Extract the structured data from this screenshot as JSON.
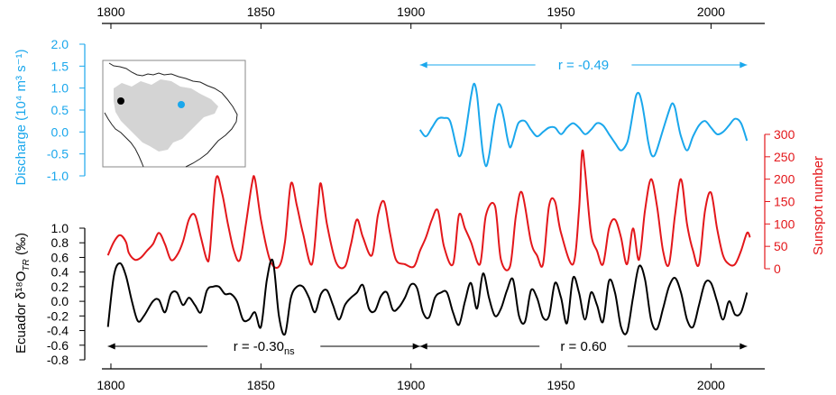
{
  "colors": {
    "discharge": "#1aa7ec",
    "sunspot": "#e3171b",
    "ecuador": "#000000",
    "map_land": "#d4d4d4",
    "map_site_ecuador": "#000000",
    "map_site_discharge": "#1aa7ec"
  },
  "labels": {
    "discharge_axis": "Discharge (10⁴ m³ s⁻¹)",
    "sunspot_axis": "Sunspot number",
    "ecuador_axis_main": "Ecuador δ¹⁸O",
    "ecuador_axis_sub": "TR",
    "ecuador_axis_unit": " (‰)",
    "r_discharge": "r = -0.49",
    "r_ecuador_early_main": "r = -0.30",
    "r_ecuador_early_sub": "ns",
    "r_ecuador_late": "r = 0.60"
  },
  "chart_data": {
    "type": "line",
    "xlim": [
      1797,
      2014
    ],
    "x_ticks": [
      "1800",
      "1850",
      "1900",
      "1950",
      "2000"
    ],
    "panels": [
      {
        "name": "Discharge",
        "axis_side": "left",
        "ylim": [
          -1.0,
          2.0
        ],
        "y_ticks": [
          "2.0",
          "1.5",
          "1.0",
          "0.5",
          "0.0",
          "-0.5",
          "-1.0"
        ],
        "x": [
          1903,
          1905,
          1907,
          1909,
          1911,
          1913,
          1915,
          1916,
          1917,
          1918,
          1919,
          1920,
          1921,
          1922,
          1923,
          1924,
          1925,
          1926,
          1927,
          1928,
          1929,
          1930,
          1931,
          1932,
          1933,
          1934,
          1935,
          1936,
          1938,
          1940,
          1942,
          1944,
          1946,
          1948,
          1950,
          1952,
          1954,
          1956,
          1958,
          1960,
          1962,
          1964,
          1966,
          1968,
          1970,
          1972,
          1973,
          1974,
          1975,
          1976,
          1977,
          1978,
          1979,
          1980,
          1981,
          1982,
          1984,
          1986,
          1987,
          1988,
          1989,
          1990,
          1992,
          1994,
          1996,
          1998,
          2000,
          2002,
          2004,
          2006,
          2008,
          2010,
          2012
        ],
        "y": [
          0.05,
          -0.1,
          0.1,
          0.3,
          0.32,
          0.25,
          -0.3,
          -0.55,
          -0.45,
          -0.1,
          0.35,
          0.8,
          1.1,
          0.85,
          0.15,
          -0.5,
          -0.78,
          -0.55,
          -0.1,
          0.35,
          0.62,
          0.58,
          0.3,
          -0.1,
          -0.35,
          -0.2,
          0.05,
          0.22,
          0.25,
          0.05,
          -0.1,
          0.0,
          0.1,
          0.1,
          -0.05,
          0.1,
          0.2,
          0.1,
          -0.05,
          0.05,
          0.2,
          0.15,
          -0.05,
          -0.25,
          -0.42,
          -0.25,
          0.05,
          0.45,
          0.82,
          0.88,
          0.65,
          0.25,
          -0.2,
          -0.5,
          -0.55,
          -0.4,
          0.05,
          0.48,
          0.65,
          0.55,
          0.2,
          -0.1,
          -0.42,
          -0.1,
          0.15,
          0.25,
          0.1,
          -0.05,
          0.0,
          0.15,
          0.3,
          0.2,
          -0.2
        ],
        "r_text": "r = -0.49",
        "r_span": [
          1903,
          2012
        ]
      },
      {
        "name": "Sunspot number",
        "axis_side": "right",
        "ylim": [
          0,
          300
        ],
        "y_ticks": [
          "300",
          "250",
          "200",
          "150",
          "100",
          "50",
          "0"
        ],
        "x": [
          1799,
          1801,
          1803,
          1805,
          1806,
          1808,
          1810,
          1812,
          1814,
          1816,
          1818,
          1820,
          1822,
          1824,
          1826,
          1828,
          1830,
          1832,
          1833,
          1835,
          1837,
          1839,
          1841,
          1843,
          1845,
          1847,
          1848,
          1850,
          1853,
          1856,
          1858,
          1860,
          1862,
          1864,
          1867,
          1869,
          1870,
          1872,
          1875,
          1878,
          1880,
          1882,
          1884,
          1887,
          1889,
          1891,
          1893,
          1895,
          1898,
          1901,
          1903,
          1905,
          1907,
          1909,
          1911,
          1914,
          1916,
          1918,
          1920,
          1923,
          1925,
          1928,
          1930,
          1933,
          1935,
          1937,
          1940,
          1942,
          1944,
          1946,
          1948,
          1950,
          1954,
          1956,
          1957,
          1958,
          1960,
          1962,
          1964,
          1966,
          1968,
          1970,
          1972,
          1974,
          1976,
          1978,
          1980,
          1982,
          1984,
          1986,
          1988,
          1990,
          1992,
          1994,
          1996,
          1998,
          2000,
          2002,
          2004,
          2006,
          2008,
          2010,
          2012,
          2013
        ],
        "y": [
          30,
          60,
          75,
          60,
          35,
          20,
          25,
          40,
          55,
          80,
          55,
          20,
          30,
          60,
          110,
          120,
          70,
          20,
          40,
          200,
          170,
          100,
          40,
          20,
          100,
          190,
          200,
          110,
          20,
          5,
          60,
          190,
          140,
          80,
          10,
          140,
          190,
          100,
          15,
          5,
          55,
          110,
          70,
          30,
          120,
          150,
          80,
          20,
          10,
          5,
          40,
          70,
          110,
          130,
          50,
          10,
          120,
          90,
          60,
          10,
          120,
          140,
          20,
          5,
          120,
          170,
          60,
          30,
          10,
          140,
          150,
          80,
          10,
          130,
          260,
          220,
          80,
          40,
          10,
          90,
          110,
          70,
          10,
          90,
          20,
          130,
          200,
          140,
          40,
          10,
          120,
          200,
          100,
          40,
          10,
          130,
          170,
          90,
          30,
          10,
          10,
          40,
          80,
          70
        ]
      },
      {
        "name": "Ecuador d18O TR",
        "axis_side": "left",
        "ylim": [
          -0.8,
          1.0
        ],
        "y_ticks": [
          "1.0",
          "0.8",
          "0.6",
          "0.4",
          "0.2",
          "0.0",
          "-0.2",
          "-0.4",
          "-0.6",
          "-0.8"
        ],
        "x": [
          1799,
          1801,
          1803,
          1805,
          1807,
          1809,
          1811,
          1814,
          1816,
          1818,
          1820,
          1822,
          1824,
          1826,
          1828,
          1830,
          1832,
          1834,
          1836,
          1838,
          1840,
          1842,
          1844,
          1846,
          1848,
          1850,
          1852,
          1854,
          1856,
          1858,
          1860,
          1862,
          1864,
          1866,
          1868,
          1870,
          1872,
          1874,
          1876,
          1878,
          1880,
          1882,
          1884,
          1886,
          1888,
          1890,
          1892,
          1894,
          1896,
          1898,
          1900,
          1902,
          1904,
          1906,
          1908,
          1910,
          1912,
          1914,
          1916,
          1918,
          1920,
          1922,
          1924,
          1926,
          1928,
          1930,
          1932,
          1934,
          1936,
          1938,
          1940,
          1942,
          1944,
          1946,
          1948,
          1950,
          1952,
          1954,
          1956,
          1958,
          1960,
          1962,
          1964,
          1966,
          1968,
          1970,
          1972,
          1974,
          1976,
          1978,
          1980,
          1982,
          1984,
          1986,
          1988,
          1990,
          1992,
          1994,
          1996,
          1998,
          2000,
          2002,
          2004,
          2006,
          2008,
          2010,
          2012
        ],
        "y": [
          -0.35,
          0.35,
          0.52,
          0.35,
          0.0,
          -0.27,
          -0.2,
          0.0,
          0.02,
          -0.15,
          0.1,
          0.12,
          -0.05,
          0.05,
          -0.05,
          -0.15,
          0.15,
          0.2,
          0.2,
          0.1,
          0.1,
          0.0,
          -0.25,
          -0.25,
          -0.15,
          -0.35,
          0.3,
          0.55,
          -0.2,
          -0.45,
          0.05,
          0.2,
          0.2,
          0.05,
          -0.15,
          0.1,
          0.15,
          -0.05,
          -0.25,
          -0.05,
          0.05,
          0.12,
          0.22,
          -0.1,
          -0.13,
          0.07,
          0.12,
          -0.12,
          -0.08,
          0.05,
          0.23,
          0.18,
          -0.15,
          -0.22,
          0.05,
          0.12,
          0.12,
          -0.15,
          -0.32,
          0.0,
          0.25,
          -0.1,
          0.38,
          0.05,
          -0.2,
          -0.1,
          0.15,
          0.3,
          -0.2,
          -0.28,
          0.15,
          0.05,
          -0.22,
          -0.2,
          0.25,
          0.05,
          -0.3,
          0.32,
          0.12,
          -0.25,
          0.12,
          -0.05,
          -0.28,
          0.28,
          0.12,
          -0.35,
          -0.42,
          0.05,
          0.48,
          0.3,
          -0.25,
          -0.38,
          -0.1,
          0.2,
          0.32,
          0.12,
          -0.25,
          -0.35,
          -0.05,
          0.25,
          0.25,
          0.0,
          -0.25,
          0.0,
          -0.18,
          -0.15,
          0.12
        ],
        "r_segments": [
          {
            "text": "r = -0.30",
            "significance": "ns",
            "span": [
              1799,
              1903
            ]
          },
          {
            "text": "r = 0.60",
            "span": [
              1903,
              2012
            ]
          }
        ]
      }
    ],
    "inset_map": {
      "sites": [
        "Ecuador",
        "Discharge"
      ]
    }
  }
}
